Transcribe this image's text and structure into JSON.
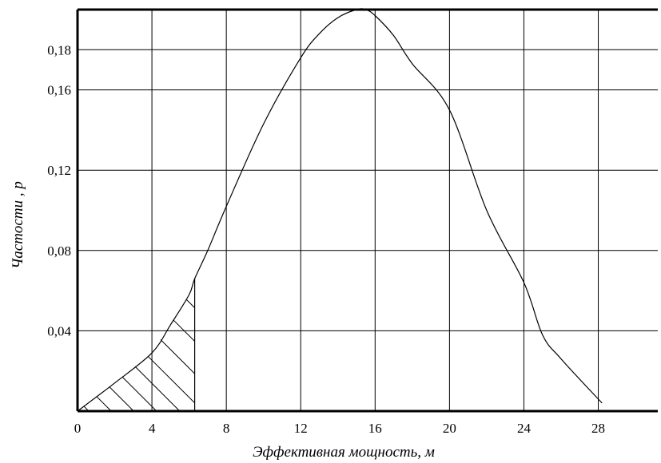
{
  "chart_data": {
    "type": "line",
    "title": "",
    "xlabel": "Эффективная мощность, м",
    "ylabel": "Частости , p",
    "xlim": [
      0,
      31.2
    ],
    "ylim": [
      0,
      0.2
    ],
    "x_ticks": [
      0,
      4,
      8,
      12,
      16,
      20,
      24,
      28
    ],
    "x_tick_labels": [
      "0",
      "4",
      "8",
      "12",
      "16",
      "20",
      "24",
      "28"
    ],
    "y_ticks": [
      0.04,
      0.08,
      0.12,
      0.16,
      0.18
    ],
    "y_tick_labels": [
      "0,04",
      "0,08",
      "0,12",
      "0,16",
      "0,18"
    ],
    "x_gridlines": [
      4,
      8,
      12,
      16,
      20,
      24,
      28
    ],
    "y_gridlines": [
      0.04,
      0.08,
      0.12,
      0.16,
      0.18
    ],
    "grid": true,
    "series": [
      {
        "x": [
          0,
          2,
          4,
          5,
          6,
          6.3,
          7,
          8,
          10,
          12,
          13,
          14,
          15,
          15.5,
          16,
          17,
          18,
          20,
          22,
          24,
          25,
          26,
          28.2
        ],
        "y": [
          0,
          0.014,
          0.029,
          0.043,
          0.058,
          0.066,
          0.08,
          0.102,
          0.143,
          0.176,
          0.188,
          0.196,
          0.2,
          0.2,
          0.197,
          0.187,
          0.173,
          0.15,
          0.1,
          0.064,
          0.038,
          0.026,
          0.004
        ]
      }
    ],
    "shaded_region": {
      "x_from": 0,
      "x_to": 6.3,
      "pattern": "diagonal hatch"
    }
  }
}
